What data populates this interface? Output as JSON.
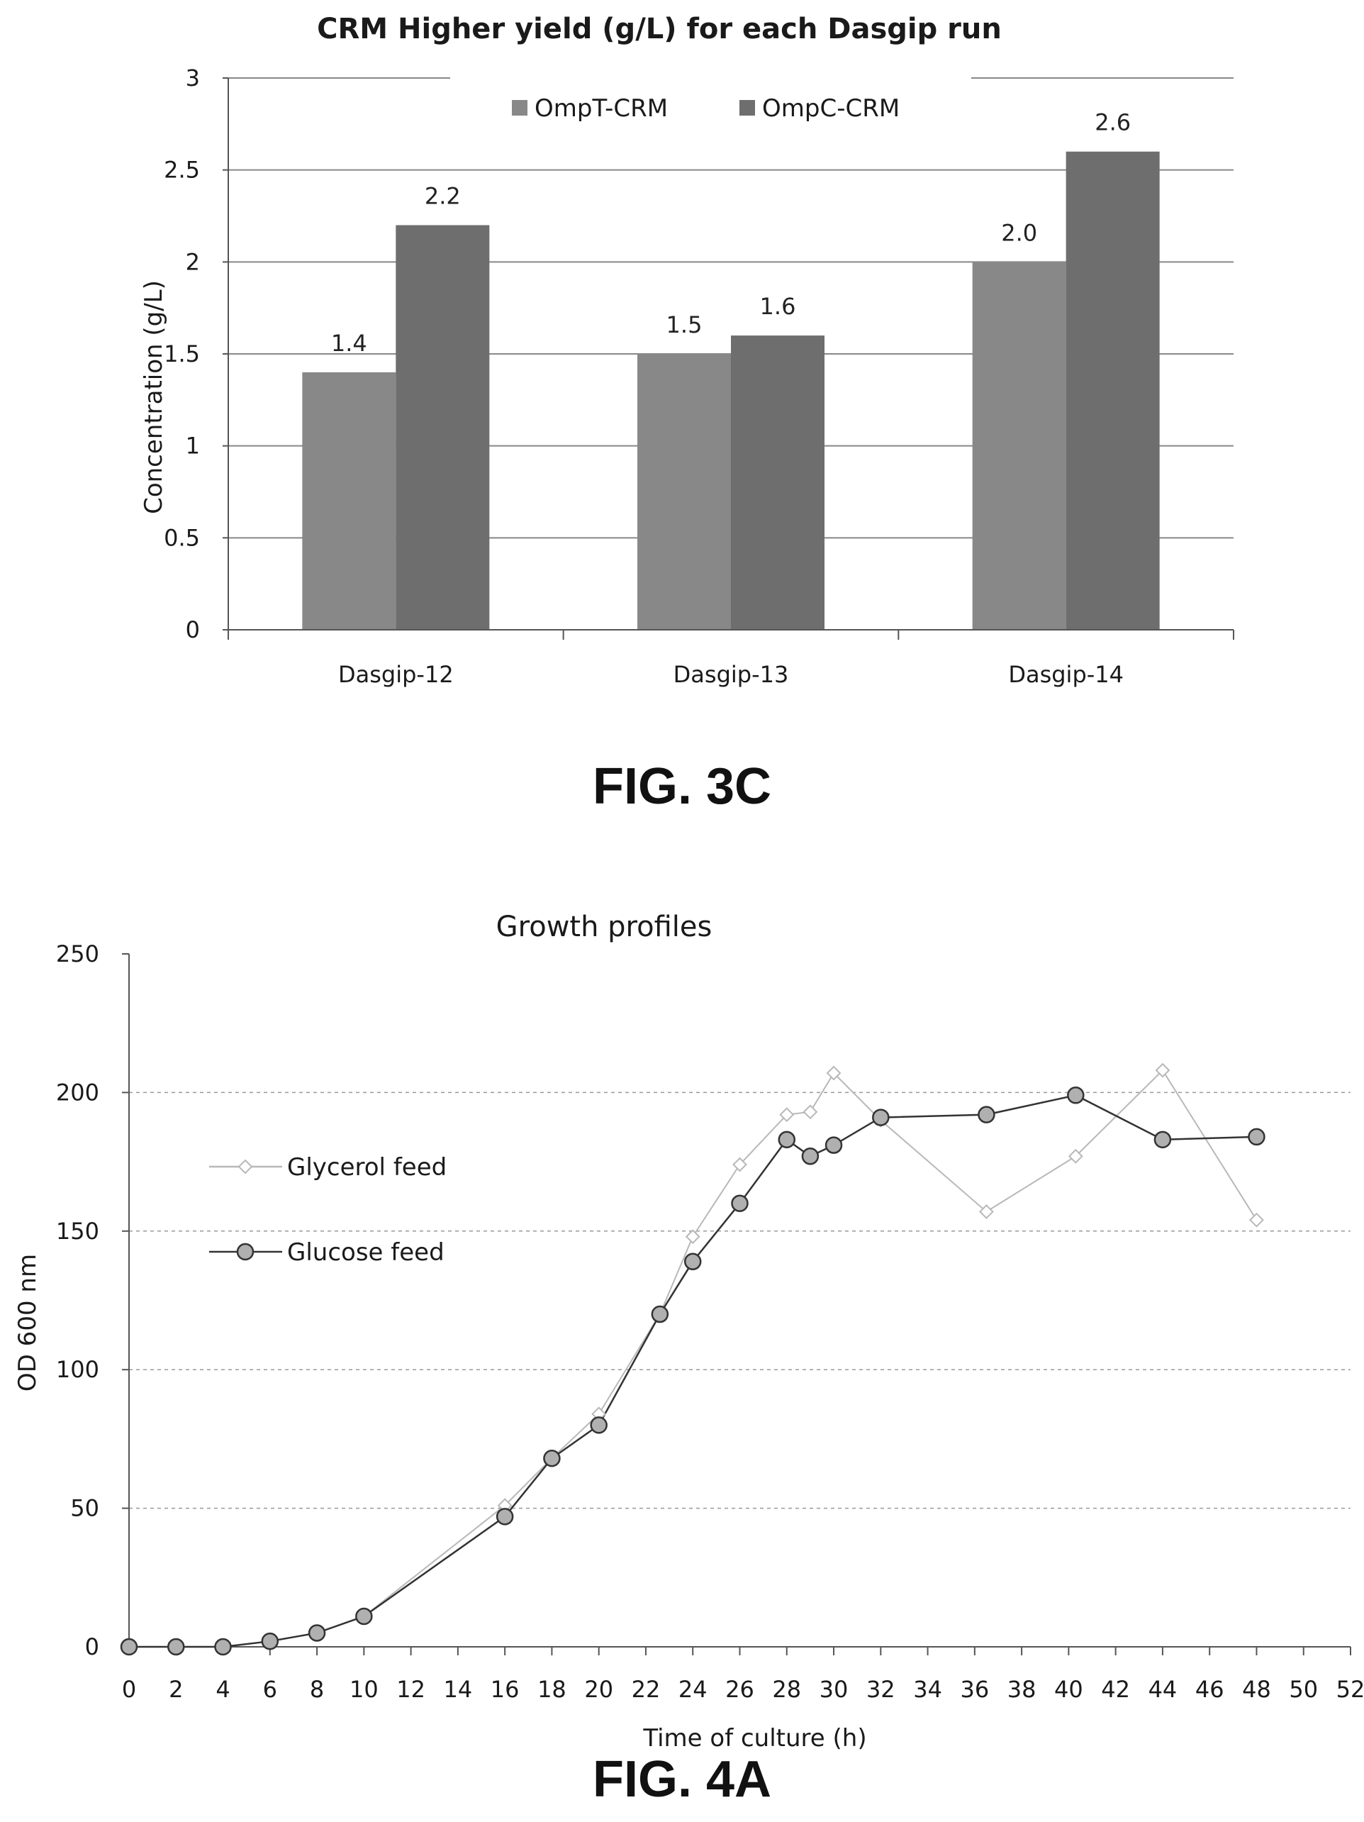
{
  "chart_data": [
    {
      "type": "bar",
      "title": "CRM Higher yield (g/L) for each Dasgip run",
      "ylabel": "Concentration (g/L)",
      "xlabel": "",
      "categories": [
        "Dasgip-12",
        "Dasgip-13",
        "Dasgip-14"
      ],
      "ylim": [
        0,
        3
      ],
      "yticks": [
        "0",
        "0.5",
        "1",
        "1.5",
        "2",
        "2.5",
        "3"
      ],
      "grid": true,
      "legend_position": "top",
      "series": [
        {
          "name": "OmpT-CRM",
          "values": [
            1.4,
            1.5,
            2.0
          ],
          "labels": [
            "1.4",
            "1.5",
            "2.0"
          ],
          "color": "#888888"
        },
        {
          "name": "OmpC-CRM",
          "values": [
            2.2,
            1.6,
            2.6
          ],
          "labels": [
            "2.2",
            "1.6",
            "2.6"
          ],
          "color": "#6e6e6e"
        }
      ],
      "caption": "FIG. 3C"
    },
    {
      "type": "line",
      "title": "Growth profiles",
      "xlabel": "Time of culture (h)",
      "ylabel": "OD 600 nm",
      "xlim": [
        0,
        52
      ],
      "ylim": [
        0,
        250
      ],
      "xticks": [
        "0",
        "2",
        "4",
        "6",
        "8",
        "10",
        "12",
        "14",
        "16",
        "18",
        "20",
        "22",
        "24",
        "26",
        "28",
        "30",
        "32",
        "34",
        "36",
        "38",
        "40",
        "42",
        "44",
        "46",
        "48",
        "50",
        "52"
      ],
      "yticks": [
        "0",
        "50",
        "100",
        "150",
        "200",
        "250"
      ],
      "grid": true,
      "legend_position": "left",
      "series": [
        {
          "name": "Glycerol feed",
          "marker": "diamond-open",
          "color": "#b8b8b8",
          "x": [
            0,
            2,
            4,
            6,
            8,
            10,
            16,
            18,
            20,
            22.6,
            24,
            26,
            28,
            29,
            30,
            32,
            36.5,
            40.3,
            44,
            48
          ],
          "y": [
            0,
            0,
            0,
            2,
            5,
            11,
            51,
            68,
            84,
            120,
            148,
            174,
            192,
            193,
            207,
            190,
            157,
            177,
            208,
            154
          ]
        },
        {
          "name": "Glucose feed",
          "marker": "circle-filled",
          "color": "#333333",
          "x": [
            0,
            2,
            4,
            6,
            8,
            10,
            16,
            18,
            20,
            22.6,
            24,
            26,
            28,
            29,
            30,
            32,
            36.5,
            40.3,
            44,
            48
          ],
          "y": [
            0,
            0,
            0,
            2,
            5,
            11,
            47,
            68,
            80,
            120,
            139,
            160,
            183,
            177,
            181,
            191,
            192,
            199,
            183,
            184
          ]
        }
      ],
      "caption": "FIG. 4A"
    }
  ]
}
